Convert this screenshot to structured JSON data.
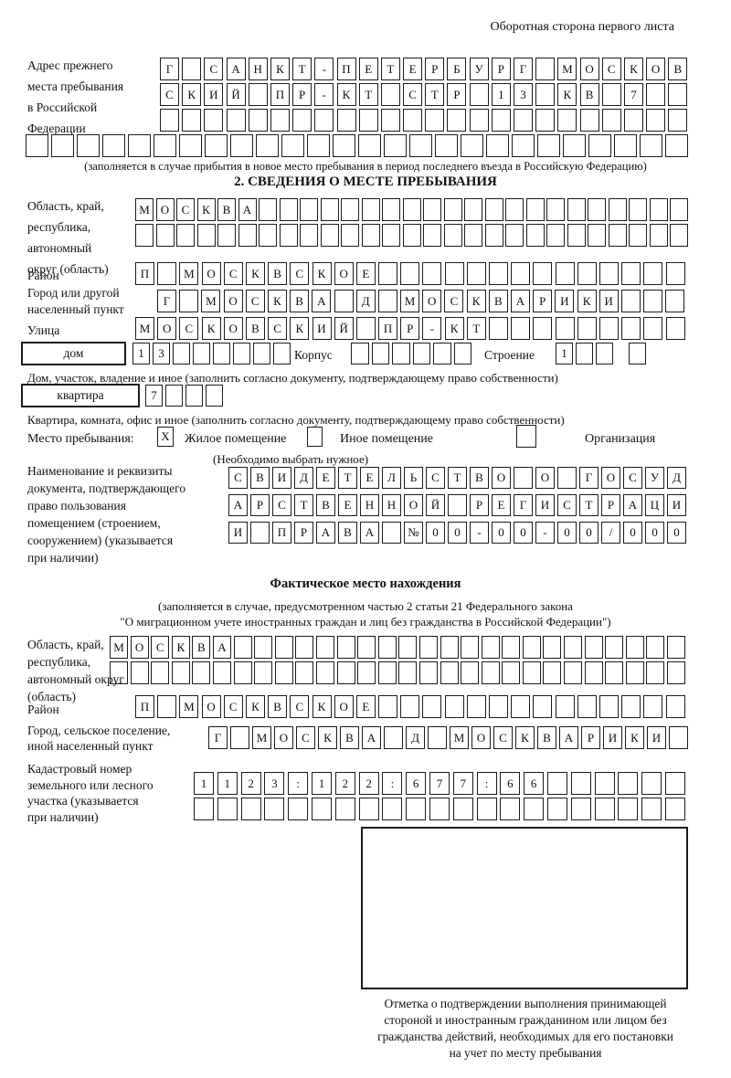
{
  "page_title": "Оборотная сторона первого листа",
  "prev_address": {
    "label": "Адрес прежнего\nместа пребывания\nв Российской\nФедерации",
    "row1": {
      "t": "Г САНКТ-ПЕТЕРБУРГ МОСКОВ",
      "n": 24
    },
    "row2": {
      "t": "СКИЙ ПР-КТ СТР 13 КВ 7",
      "n": 24
    },
    "row3": {
      "t": "",
      "n": 24
    },
    "row4": {
      "t": "",
      "n": 26
    },
    "note": "(заполняется в случае прибытия в новое место пребывания в период последнего въезда в Российскую Федерацию)"
  },
  "section2": {
    "header": "2. СВЕДЕНИЯ О МЕСТЕ ПРЕБЫВАНИЯ",
    "region": {
      "label": "Область, край,\nреспублика,\nавтономный\nокруг (область)",
      "row1": {
        "t": "МОСКВА",
        "n": 27
      },
      "row2": {
        "t": "",
        "n": 27
      }
    },
    "district": {
      "label": "Район",
      "row": {
        "t": "П МОСКВСКОЕ",
        "n": 25
      }
    },
    "city": {
      "label": "Город или другой\nнаселенный пункт",
      "row": {
        "t": "Г МОСКВА Д МОСКВАРИКИ",
        "n": 24
      }
    },
    "street": {
      "label": "Улица",
      "row": {
        "t": "МОСКОВСКИЙ ПР-КТ",
        "n": 25
      }
    },
    "house": {
      "box_label": "дом",
      "cells": {
        "t": "13",
        "n": 8
      },
      "korpus_label": "Корпус",
      "korpus_cells": {
        "t": "",
        "n": 6
      },
      "stroenie_label": "Строение",
      "stroenie_cells": {
        "t": "1",
        "n": 4
      }
    },
    "house_note": "Дом, участок, владение и иное (заполнить согласно документу, подтверждающему право собственности)",
    "apartment": {
      "box_label": "квартира",
      "cells": {
        "t": "7",
        "n": 4
      }
    },
    "apartment_note": "Квартира, комната, офис и иное (заполнить согласно документу, подтверждающему право собственности)",
    "stay_type": {
      "label": "Место пребывания:",
      "options": [
        {
          "label": "Жилое помещение",
          "mark": "X"
        },
        {
          "label": "Иное помещение",
          "mark": ""
        },
        {
          "label": "Организация",
          "mark": ""
        }
      ],
      "note": "(Необходимо выбрать нужное)"
    },
    "document": {
      "label": "Наименование и реквизиты\nдокумента, подтверждающего\nправо пользования\nпомещением (строением,\nсооружением) (указывается\nпри наличии)",
      "row1": {
        "t": "СВИДЕТЕЛЬСТВО О ГОСУД",
        "n": 21
      },
      "row2": {
        "t": "АРСТВЕННОЙ РЕГИСТРАЦИ",
        "n": 21
      },
      "row3": {
        "t": "И ПРАВА №00-00-00/000",
        "n": 21
      }
    }
  },
  "section3": {
    "header": "Фактическое место нахождения",
    "note_line1": "(заполняется в случае, предусмотренном частью 2 статьи 21 Федерального закона",
    "note_line2": "\"О миграционном учете иностранных граждан и лиц без гражданства в Российской Федерации\")",
    "region": {
      "label": "Область, край,\nреспублика,\nавтономный округ\n(область)",
      "row1": {
        "t": "МОСКВА",
        "n": 28
      },
      "row2": {
        "t": "",
        "n": 28
      }
    },
    "district": {
      "label": "Район",
      "row": {
        "t": "П МОСКВСКОЕ",
        "n": 25
      }
    },
    "city": {
      "label": "Город, сельское поселение,\nиной населенный пункт",
      "row": {
        "t": "Г МОСКВА Д МОСКВАРИКИ",
        "n": 22
      }
    },
    "cadastral": {
      "label": "Кадастровый номер\nземельного или лесного\nучастка (указывается\nпри наличии)",
      "row1": {
        "t": "1123:122:677:66",
        "n": 21
      },
      "row2": {
        "t": "",
        "n": 21
      }
    },
    "stamp_note": "Отметка о подтверждении выполнения принимающей\nстороной и иностранным гражданином или лицом без\nгражданства действий, необходимых для его постановки\nна учет по месту пребывания"
  }
}
